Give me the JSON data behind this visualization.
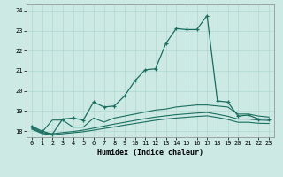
{
  "xlabel": "Humidex (Indice chaleur)",
  "background_color": "#cce9e4",
  "grid_color": "#b0d8d0",
  "line_color": "#1a6e60",
  "xlim": [
    -0.5,
    23.5
  ],
  "ylim": [
    17.7,
    24.3
  ],
  "yticks": [
    18,
    19,
    20,
    21,
    22,
    23,
    24
  ],
  "xticks": [
    0,
    1,
    2,
    3,
    4,
    5,
    6,
    7,
    8,
    9,
    10,
    11,
    12,
    13,
    14,
    15,
    16,
    17,
    18,
    19,
    20,
    21,
    22,
    23
  ],
  "series1": {
    "x": [
      0,
      1,
      2,
      3,
      4,
      5,
      6,
      7,
      8,
      9,
      10,
      11,
      12,
      13,
      14,
      15,
      16,
      17,
      18,
      19,
      20,
      21,
      22,
      23
    ],
    "y": [
      18.25,
      18.0,
      17.85,
      18.6,
      18.65,
      18.55,
      19.45,
      19.2,
      19.25,
      19.75,
      20.5,
      21.05,
      21.1,
      22.35,
      23.1,
      23.05,
      23.05,
      23.75,
      19.5,
      19.45,
      18.75,
      18.8,
      18.6,
      18.6
    ]
  },
  "series2": {
    "x": [
      0,
      1,
      2,
      3,
      4,
      5,
      6,
      7,
      8,
      9,
      10,
      11,
      12,
      13,
      14,
      15,
      16,
      17,
      18,
      19,
      20,
      21,
      22,
      23
    ],
    "y": [
      18.2,
      17.95,
      18.55,
      18.55,
      18.2,
      18.2,
      18.65,
      18.45,
      18.65,
      18.75,
      18.85,
      18.95,
      19.05,
      19.1,
      19.2,
      19.25,
      19.3,
      19.3,
      19.25,
      19.2,
      18.85,
      18.85,
      18.75,
      18.7
    ]
  },
  "series3": {
    "x": [
      0,
      1,
      2,
      3,
      4,
      5,
      6,
      7,
      8,
      9,
      10,
      11,
      12,
      13,
      14,
      15,
      16,
      17,
      18,
      19,
      20,
      21,
      22,
      23
    ],
    "y": [
      18.15,
      17.92,
      17.87,
      17.93,
      17.98,
      18.05,
      18.15,
      18.25,
      18.35,
      18.44,
      18.53,
      18.62,
      18.7,
      18.76,
      18.82,
      18.86,
      18.9,
      18.93,
      18.84,
      18.74,
      18.6,
      18.6,
      18.55,
      18.53
    ]
  },
  "series4": {
    "x": [
      0,
      1,
      2,
      3,
      4,
      5,
      6,
      7,
      8,
      9,
      10,
      11,
      12,
      13,
      14,
      15,
      16,
      17,
      18,
      19,
      20,
      21,
      22,
      23
    ],
    "y": [
      18.1,
      17.88,
      17.82,
      17.87,
      17.92,
      17.97,
      18.05,
      18.13,
      18.21,
      18.3,
      18.38,
      18.46,
      18.54,
      18.6,
      18.65,
      18.69,
      18.73,
      18.76,
      18.68,
      18.58,
      18.44,
      18.44,
      18.39,
      18.38
    ]
  }
}
